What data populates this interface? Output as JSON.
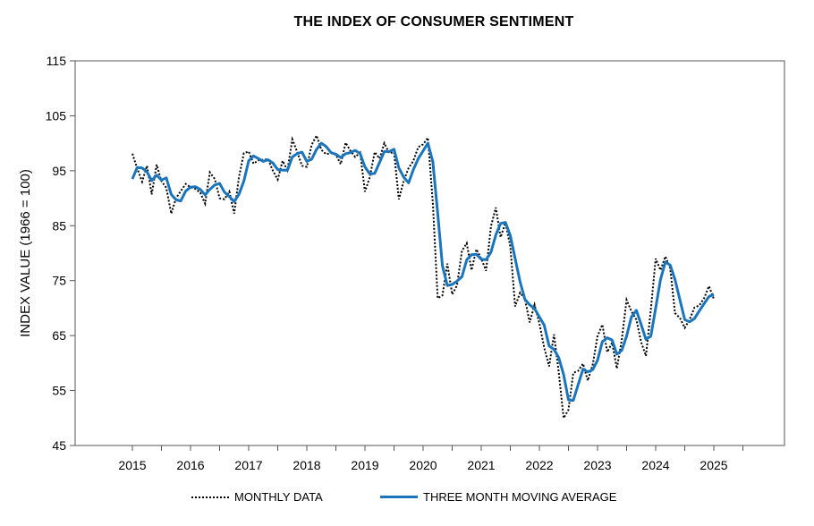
{
  "chart_data": {
    "type": "line",
    "title": "THE INDEX OF CONSUMER SENTIMENT",
    "ylabel": "INDEX VALUE (1966 = 100)",
    "xlabel": "",
    "ylim": [
      45,
      115
    ],
    "xlim": [
      2015,
      2026
    ],
    "y_ticks": [
      45,
      55,
      65,
      75,
      85,
      95,
      105,
      115
    ],
    "x_ticks": [
      "2015",
      "2016",
      "2017",
      "2018",
      "2019",
      "2020",
      "2021",
      "2022",
      "2023",
      "2024",
      "2025"
    ],
    "grid": false,
    "legend_position": "bottom",
    "colors": {
      "monthly": "#000000",
      "average": "#1a75bc"
    },
    "series": [
      {
        "name": "MONTHLY DATA",
        "style": "dotted",
        "x": [
          2015.0,
          2015.083,
          2015.167,
          2015.25,
          2015.333,
          2015.417,
          2015.5,
          2015.583,
          2015.667,
          2015.75,
          2015.833,
          2015.917,
          2016.0,
          2016.083,
          2016.167,
          2016.25,
          2016.333,
          2016.417,
          2016.5,
          2016.583,
          2016.667,
          2016.75,
          2016.833,
          2016.917,
          2017.0,
          2017.083,
          2017.167,
          2017.25,
          2017.333,
          2017.417,
          2017.5,
          2017.583,
          2017.667,
          2017.75,
          2017.833,
          2017.917,
          2018.0,
          2018.083,
          2018.167,
          2018.25,
          2018.333,
          2018.417,
          2018.5,
          2018.583,
          2018.667,
          2018.75,
          2018.833,
          2018.917,
          2019.0,
          2019.083,
          2019.167,
          2019.25,
          2019.333,
          2019.417,
          2019.5,
          2019.583,
          2019.667,
          2019.75,
          2019.833,
          2019.917,
          2020.0,
          2020.083,
          2020.167,
          2020.25,
          2020.333,
          2020.417,
          2020.5,
          2020.583,
          2020.667,
          2020.75,
          2020.833,
          2020.917,
          2021.0,
          2021.083,
          2021.167,
          2021.25,
          2021.333,
          2021.417,
          2021.5,
          2021.583,
          2021.667,
          2021.75,
          2021.833,
          2021.917,
          2022.0,
          2022.083,
          2022.167,
          2022.25,
          2022.333,
          2022.417,
          2022.5,
          2022.583,
          2022.667,
          2022.75,
          2022.833,
          2022.917,
          2023.0,
          2023.083,
          2023.167,
          2023.25,
          2023.333,
          2023.417,
          2023.5,
          2023.583,
          2023.667,
          2023.75,
          2023.833,
          2023.917,
          2024.0,
          2024.083,
          2024.167,
          2024.25,
          2024.333,
          2024.417,
          2024.5,
          2024.583,
          2024.667,
          2024.75,
          2024.833,
          2024.917,
          2025.0
        ],
        "values": [
          98.1,
          95.4,
          93.0,
          95.9,
          90.7,
          96.1,
          93.1,
          91.9,
          87.2,
          90.0,
          91.3,
          92.6,
          92.0,
          91.7,
          91.0,
          89.0,
          94.7,
          93.5,
          90.0,
          89.8,
          91.2,
          87.2,
          93.8,
          98.2,
          98.5,
          96.3,
          96.9,
          97.0,
          97.1,
          95.0,
          93.4,
          96.8,
          95.1,
          100.7,
          98.5,
          95.9,
          95.7,
          99.7,
          101.4,
          98.8,
          98.0,
          98.2,
          97.9,
          96.2,
          100.1,
          98.6,
          97.5,
          98.3,
          91.2,
          93.8,
          98.4,
          97.2,
          100.0,
          98.2,
          98.4,
          89.8,
          93.2,
          95.5,
          96.8,
          99.3,
          99.8,
          101.0,
          89.1,
          71.8,
          72.3,
          78.1,
          72.5,
          74.1,
          80.4,
          81.8,
          76.9,
          80.7,
          79.0,
          76.8,
          84.9,
          88.3,
          82.9,
          85.5,
          81.2,
          70.3,
          72.8,
          71.7,
          67.4,
          70.6,
          67.2,
          62.8,
          59.4,
          65.2,
          58.4,
          50.0,
          51.5,
          58.2,
          58.6,
          59.9,
          56.8,
          59.7,
          64.9,
          67.0,
          62.0,
          63.7,
          59.0,
          64.2,
          71.5,
          69.4,
          67.9,
          63.8,
          61.3,
          69.7,
          79.0,
          76.9,
          79.4,
          77.2,
          69.1,
          68.2,
          66.4,
          67.9,
          70.1,
          70.5,
          71.8,
          74.0,
          71.7
        ]
      },
      {
        "name": "THREE MONTH MOVING AVERAGE",
        "style": "solid",
        "x": [
          2015.0,
          2015.083,
          2015.167,
          2015.25,
          2015.333,
          2015.417,
          2015.5,
          2015.583,
          2015.667,
          2015.75,
          2015.833,
          2015.917,
          2016.0,
          2016.083,
          2016.167,
          2016.25,
          2016.333,
          2016.417,
          2016.5,
          2016.583,
          2016.667,
          2016.75,
          2016.833,
          2016.917,
          2017.0,
          2017.083,
          2017.167,
          2017.25,
          2017.333,
          2017.417,
          2017.5,
          2017.583,
          2017.667,
          2017.75,
          2017.833,
          2017.917,
          2018.0,
          2018.083,
          2018.167,
          2018.25,
          2018.333,
          2018.417,
          2018.5,
          2018.583,
          2018.667,
          2018.75,
          2018.833,
          2018.917,
          2019.0,
          2019.083,
          2019.167,
          2019.25,
          2019.333,
          2019.417,
          2019.5,
          2019.583,
          2019.667,
          2019.75,
          2019.833,
          2019.917,
          2020.0,
          2020.083,
          2020.167,
          2020.25,
          2020.333,
          2020.417,
          2020.5,
          2020.583,
          2020.667,
          2020.75,
          2020.833,
          2020.917,
          2021.0,
          2021.083,
          2021.167,
          2021.25,
          2021.333,
          2021.417,
          2021.5,
          2021.583,
          2021.667,
          2021.75,
          2021.833,
          2021.917,
          2022.0,
          2022.083,
          2022.167,
          2022.25,
          2022.333,
          2022.417,
          2022.5,
          2022.583,
          2022.667,
          2022.75,
          2022.833,
          2022.917,
          2023.0,
          2023.083,
          2023.167,
          2023.25,
          2023.333,
          2023.417,
          2023.5,
          2023.583,
          2023.667,
          2023.75,
          2023.833,
          2023.917,
          2024.0,
          2024.083,
          2024.167,
          2024.25,
          2024.333,
          2024.417,
          2024.5,
          2024.583,
          2024.667,
          2024.75,
          2024.833,
          2024.917,
          2025.0
        ],
        "values": [
          93.5,
          95.6,
          95.5,
          94.8,
          93.2,
          94.2,
          93.3,
          93.7,
          90.7,
          89.7,
          89.5,
          91.3,
          92.0,
          92.1,
          91.6,
          90.6,
          91.6,
          92.4,
          92.7,
          91.1,
          90.3,
          89.4,
          90.7,
          93.1,
          96.8,
          97.7,
          97.2,
          96.7,
          97.0,
          96.4,
          95.2,
          95.1,
          95.1,
          97.5,
          98.1,
          98.4,
          96.7,
          97.1,
          98.9,
          100.0,
          99.4,
          98.3,
          98.0,
          97.4,
          98.1,
          98.3,
          98.7,
          98.1,
          95.7,
          94.4,
          94.5,
          96.5,
          98.5,
          98.5,
          98.9,
          95.5,
          93.8,
          92.8,
          95.2,
          97.2,
          98.6,
          100.0,
          96.6,
          87.3,
          77.7,
          74.1,
          74.3,
          74.9,
          75.7,
          78.8,
          79.7,
          79.8,
          78.9,
          78.8,
          80.2,
          83.3,
          85.4,
          85.6,
          83.2,
          79.0,
          74.8,
          71.6,
          70.6,
          69.9,
          68.4,
          66.9,
          63.1,
          62.5,
          61.0,
          57.9,
          53.3,
          53.2,
          56.1,
          58.9,
          58.4,
          58.8,
          60.5,
          63.9,
          64.6,
          64.2,
          61.6,
          62.3,
          64.9,
          68.4,
          69.6,
          67.0,
          64.3,
          64.9,
          70.0,
          75.2,
          78.4,
          77.8,
          75.2,
          71.5,
          67.9,
          67.5,
          68.1,
          69.5,
          70.8,
          72.1,
          72.5
        ]
      }
    ]
  },
  "legend": {
    "monthly_label": "MONTHLY DATA",
    "average_label": "THREE MONTH MOVING AVERAGE"
  }
}
